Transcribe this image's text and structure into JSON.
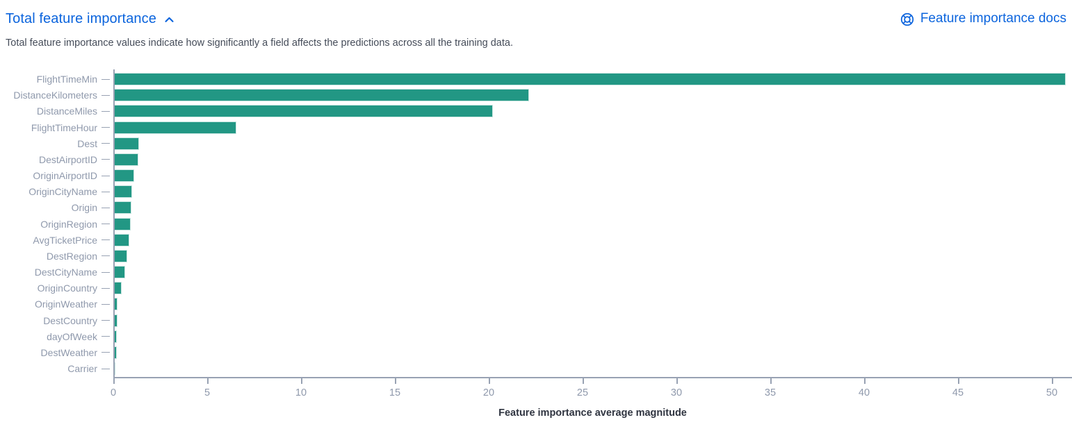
{
  "header": {
    "title": "Total feature importance",
    "collapse_icon": "chevron-up-icon",
    "docs_link": {
      "icon": "life-ring-docs-icon",
      "label": "Feature importance docs"
    }
  },
  "description": "Total feature importance values indicate how significantly a field affects the predictions across all the training data.",
  "colors": {
    "link_blue": "#0b64dd",
    "bar_teal": "#229784",
    "axis_line": "#98a2b3",
    "axis_text": "#8f99ac",
    "axis_title_text": "#2f3440",
    "body_text": "#454c59"
  },
  "chart_data": {
    "type": "bar",
    "orientation": "horizontal",
    "title": "",
    "xlabel": "Feature importance average magnitude",
    "ylabel": "",
    "grid": false,
    "legend": false,
    "xlim": [
      0,
      51
    ],
    "xticks": [
      0,
      5,
      10,
      15,
      20,
      25,
      30,
      35,
      40,
      45,
      50
    ],
    "categories": [
      "FlightTimeMin",
      "DistanceKilometers",
      "DistanceMiles",
      "FlightTimeHour",
      "Dest",
      "DestAirportID",
      "OriginAirportID",
      "OriginCityName",
      "Origin",
      "OriginRegion",
      "AvgTicketPrice",
      "DestRegion",
      "DestCityName",
      "OriginCountry",
      "OriginWeather",
      "DestCountry",
      "dayOfWeek",
      "DestWeather",
      "Carrier"
    ],
    "values": [
      50.7,
      22.1,
      20.2,
      6.5,
      1.34,
      1.31,
      1.07,
      0.97,
      0.94,
      0.89,
      0.81,
      0.7,
      0.6,
      0.41,
      0.19,
      0.18,
      0.15,
      0.13,
      0.05
    ]
  }
}
